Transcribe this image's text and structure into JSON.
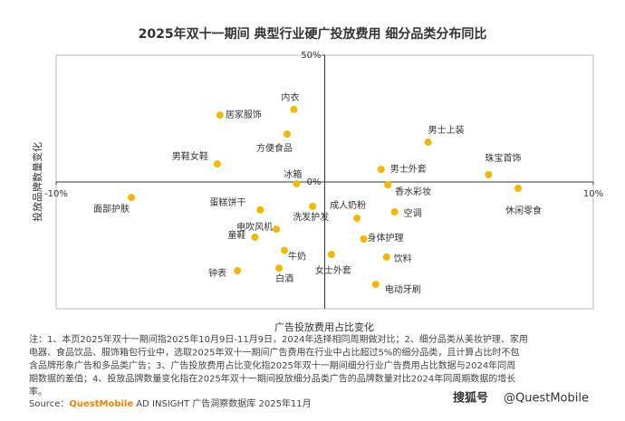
{
  "chart_data": {
    "type": "scatter",
    "title": "2025年双十一期间 典型行业硬广投放费用 细分品类分布同比",
    "x_label": "广告投放费用占比变化",
    "y_label": "投放品牌数量变化",
    "xlim": [
      -10,
      10
    ],
    "ylim": [
      -50,
      50
    ],
    "xticks": [
      {
        "value": -10,
        "label": "-10%"
      },
      {
        "value": 10,
        "label": "10%"
      }
    ],
    "yticks": [
      {
        "value": 50,
        "label": "50%"
      },
      {
        "value": 0,
        "label": "0%"
      }
    ],
    "color": "#f5b800",
    "points": {
      "labels": [
        "内衣",
        "居家服饰",
        "方便食品",
        "男鞋女鞋",
        "冰箱",
        "面部护肤",
        "蛋糕饼干",
        "洗发护发",
        "电吹风机",
        "童鞋",
        "牛奶",
        "钟表",
        "白酒",
        "男士上装",
        "珠宝首饰",
        "男士外套",
        "香水彩妆",
        "休闲零食",
        "成人奶粉",
        "空调",
        "身体护理",
        "饮料",
        "女士外套",
        "电动牙刷"
      ],
      "x": [
        -1.15,
        -3.9,
        -1.4,
        -4.0,
        -1.05,
        -7.2,
        -2.4,
        -0.45,
        -1.8,
        -2.6,
        -1.5,
        -3.25,
        -1.7,
        3.85,
        6.1,
        2.1,
        2.35,
        7.2,
        1.2,
        2.6,
        1.45,
        2.3,
        0.25,
        1.9
      ],
      "y": [
        28.6,
        26.4,
        18.9,
        7.1,
        -0.7,
        -6.1,
        -11,
        -9.6,
        -18.6,
        -21.8,
        -27,
        -35,
        -34,
        15.7,
        2.9,
        5,
        -1.1,
        -2.5,
        -14.3,
        -11.8,
        -22.5,
        -29.6,
        -28.6,
        -40.4
      ]
    }
  },
  "notes": [
    "注：1、本页2025年双十一期间指2025年10月9日-11月9日，2024年选择相同周期做对比；2、细分品类从美妆护理、家用",
    "电器、食品饮品、服饰箱包行业中，选取2025年双十一期间广告费用在行业中占比超过5%的细分品类，且计算占比时不包",
    "含品牌形象广告和多品类广告；3、广告投放费用占比变化指2025年双十一期间细分行业广告费用占比数据与2024年同周",
    "期数据的差值；4、投放品牌数量变化指在2025年双十一期间投放细分品类广告的品牌数量对比2024年同周期数据的增长",
    "率。"
  ],
  "source": {
    "prefix": "Source：",
    "brand": "QuestMobile",
    "rest": " AD INSIGHT 广告洞察数据库 2025年11月"
  },
  "watermark": {
    "platform": "搜狐号",
    "handle": "@QuestMobile"
  }
}
